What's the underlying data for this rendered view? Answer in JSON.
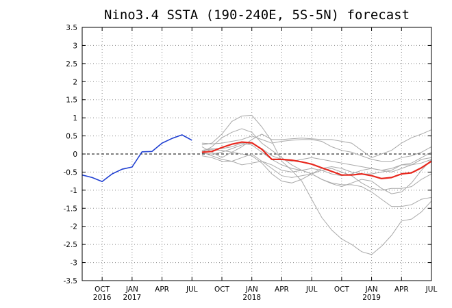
{
  "chart_data": {
    "type": "line",
    "title": "Nino3.4 SSTA (190-240E, 5S-5N) forecast",
    "xlabel": "",
    "ylabel": "",
    "ylim": [
      -3.5,
      3.5
    ],
    "xlim": [
      "2016-08",
      "2019-07"
    ],
    "grid": true,
    "y_ticks": [
      "3.5",
      "3",
      "2.5",
      "2",
      "1.5",
      "1",
      "0.5",
      "0",
      "-0.5",
      "-1",
      "-1.5",
      "-2",
      "-2.5",
      "-3",
      "-3.5"
    ],
    "x_ticks": [
      {
        "x": "2016-10",
        "month": "OCT",
        "year": "2016"
      },
      {
        "x": "2017-01",
        "month": "JAN",
        "year": "2017"
      },
      {
        "x": "2017-04",
        "month": "APR",
        "year": ""
      },
      {
        "x": "2017-07",
        "month": "JUL",
        "year": ""
      },
      {
        "x": "2017-10",
        "month": "OCT",
        "year": ""
      },
      {
        "x": "2018-01",
        "month": "JAN",
        "year": "2018"
      },
      {
        "x": "2018-04",
        "month": "APR",
        "year": ""
      },
      {
        "x": "2018-07",
        "month": "JUL",
        "year": ""
      },
      {
        "x": "2018-10",
        "month": "OCT",
        "year": ""
      },
      {
        "x": "2019-01",
        "month": "JAN",
        "year": "2019"
      },
      {
        "x": "2019-04",
        "month": "APR",
        "year": ""
      },
      {
        "x": "2019-07",
        "month": "JUL",
        "year": ""
      }
    ],
    "zero_line": {
      "y": 0,
      "style": "dashed",
      "color": "#000000"
    },
    "observed": {
      "color": "#1f3fd1",
      "x": [
        "2016-08",
        "2016-09",
        "2016-10",
        "2016-11",
        "2016-12",
        "2017-01",
        "2017-02",
        "2017-03",
        "2017-04",
        "2017-05",
        "2017-06",
        "2017-07"
      ],
      "y": [
        -0.58,
        -0.65,
        -0.76,
        -0.55,
        -0.42,
        -0.36,
        0.06,
        0.07,
        0.3,
        0.43,
        0.53,
        0.38
      ]
    },
    "ensemble_mean": {
      "color": "#e8281e",
      "x": [
        "2017-08",
        "2017-09",
        "2017-10",
        "2017-11",
        "2017-12",
        "2018-01",
        "2018-02",
        "2018-03",
        "2018-04",
        "2018-05",
        "2018-06",
        "2018-07",
        "2018-08",
        "2018-09",
        "2018-10",
        "2018-11",
        "2018-12",
        "2019-01",
        "2019-02",
        "2019-03",
        "2019-04",
        "2019-05",
        "2019-06",
        "2019-07"
      ],
      "y": [
        0.05,
        0.07,
        0.18,
        0.27,
        0.33,
        0.31,
        0.13,
        -0.15,
        -0.15,
        -0.17,
        -0.22,
        -0.28,
        -0.38,
        -0.48,
        -0.58,
        -0.58,
        -0.55,
        -0.6,
        -0.68,
        -0.65,
        -0.55,
        -0.52,
        -0.38,
        -0.2
      ]
    },
    "members_color": "#a9a9a9",
    "members": [
      {
        "x": [
          "2017-08",
          "2017-09",
          "2017-10",
          "2017-11",
          "2017-12",
          "2018-01",
          "2018-02",
          "2018-03",
          "2018-04",
          "2018-05",
          "2018-06",
          "2018-07",
          "2018-08",
          "2018-09",
          "2018-10",
          "2018-11",
          "2018-12",
          "2019-01",
          "2019-02",
          "2019-03",
          "2019-04",
          "2019-05",
          "2019-06",
          "2019-07"
        ],
        "y": [
          0.25,
          0.3,
          0.55,
          0.9,
          1.05,
          1.07,
          0.75,
          0.35,
          -0.2,
          -0.45,
          -0.75,
          -1.25,
          -1.75,
          -2.1,
          -2.35,
          -2.5,
          -2.7,
          -2.78,
          -2.55,
          -2.25,
          -1.85,
          -1.8,
          -1.6,
          -1.3
        ]
      },
      {
        "x": [
          "2017-08",
          "2017-09",
          "2017-10",
          "2017-11",
          "2017-12",
          "2018-01",
          "2018-02",
          "2018-03",
          "2018-04",
          "2018-05",
          "2018-06",
          "2018-07",
          "2018-08",
          "2018-09",
          "2018-10",
          "2018-11",
          "2018-12",
          "2019-01",
          "2019-02",
          "2019-03",
          "2019-04",
          "2019-05",
          "2019-06",
          "2019-07"
        ],
        "y": [
          0.05,
          0.2,
          0.45,
          0.6,
          0.7,
          0.6,
          0.3,
          0.1,
          -0.1,
          -0.3,
          -0.45,
          -0.55,
          -0.7,
          -0.8,
          -0.85,
          -0.85,
          -0.9,
          -1.05,
          -1.25,
          -1.45,
          -1.45,
          -1.4,
          -1.25,
          -1.2
        ]
      },
      {
        "x": [
          "2017-08",
          "2017-09",
          "2017-10",
          "2017-11",
          "2017-12",
          "2018-01",
          "2018-02",
          "2018-03",
          "2018-04",
          "2018-05",
          "2018-06",
          "2018-07",
          "2018-08",
          "2018-09",
          "2018-10",
          "2018-11",
          "2018-12",
          "2019-01",
          "2019-02",
          "2019-03",
          "2019-04",
          "2019-05",
          "2019-06",
          "2019-07"
        ],
        "y": [
          0.2,
          0.05,
          -0.1,
          0.05,
          0.2,
          0.4,
          0.55,
          0.4,
          0.4,
          0.42,
          0.44,
          0.42,
          0.4,
          0.4,
          0.35,
          0.3,
          0.1,
          -0.1,
          0.0,
          0.1,
          0.3,
          0.45,
          0.55,
          0.67
        ]
      },
      {
        "x": [
          "2017-08",
          "2017-09",
          "2017-10",
          "2017-11",
          "2017-12",
          "2018-01",
          "2018-02",
          "2018-03",
          "2018-04",
          "2018-05",
          "2018-06",
          "2018-07",
          "2018-08",
          "2018-09",
          "2018-10",
          "2018-11",
          "2018-12",
          "2019-01",
          "2019-02",
          "2019-03",
          "2019-04",
          "2019-05",
          "2019-06",
          "2019-07"
        ],
        "y": [
          0.3,
          0.28,
          0.3,
          0.35,
          0.4,
          0.5,
          0.4,
          0.3,
          0.35,
          0.38,
          0.4,
          0.4,
          0.35,
          0.2,
          0.1,
          0.05,
          -0.05,
          -0.15,
          -0.2,
          -0.2,
          -0.1,
          -0.05,
          0.05,
          0.2
        ]
      },
      {
        "x": [
          "2017-08",
          "2017-09",
          "2017-10",
          "2017-11",
          "2017-12",
          "2018-01",
          "2018-02",
          "2018-03",
          "2018-04",
          "2018-05",
          "2018-06",
          "2018-07",
          "2018-08",
          "2018-09",
          "2018-10",
          "2018-11",
          "2018-12",
          "2019-01",
          "2019-02",
          "2019-03",
          "2019-04",
          "2019-05",
          "2019-06",
          "2019-07"
        ],
        "y": [
          -0.05,
          -0.1,
          -0.2,
          -0.2,
          -0.1,
          0.0,
          -0.2,
          -0.4,
          -0.6,
          -0.65,
          -0.6,
          -0.55,
          -0.45,
          -0.4,
          -0.5,
          -0.6,
          -0.8,
          -0.95,
          -1.0,
          -0.95,
          -0.95,
          -0.9,
          -0.7,
          -0.55
        ]
      },
      {
        "x": [
          "2017-08",
          "2017-09",
          "2017-10",
          "2017-11",
          "2017-12",
          "2018-01",
          "2018-02",
          "2018-03",
          "2018-04",
          "2018-05",
          "2018-06",
          "2018-07",
          "2018-08",
          "2018-09",
          "2018-10",
          "2018-11",
          "2018-12",
          "2019-01",
          "2019-02",
          "2019-03",
          "2019-04",
          "2019-05",
          "2019-06",
          "2019-07"
        ],
        "y": [
          0.1,
          0.15,
          0.15,
          0.2,
          0.3,
          0.25,
          0.05,
          -0.15,
          -0.3,
          -0.4,
          -0.45,
          -0.55,
          -0.7,
          -0.82,
          -0.9,
          -0.8,
          -0.7,
          -0.75,
          -0.95,
          -1.1,
          -1.05,
          -0.8,
          -0.45,
          -0.15
        ]
      },
      {
        "x": [
          "2017-08",
          "2017-09",
          "2017-10",
          "2017-11",
          "2017-12",
          "2018-01",
          "2018-02",
          "2018-03",
          "2018-04",
          "2018-05",
          "2018-06",
          "2018-07",
          "2018-08",
          "2018-09",
          "2018-10",
          "2018-11",
          "2018-12",
          "2019-01",
          "2019-02",
          "2019-03",
          "2019-04",
          "2019-05",
          "2019-06",
          "2019-07"
        ],
        "y": [
          0.1,
          0.12,
          0.1,
          0.05,
          0.0,
          -0.05,
          -0.25,
          -0.55,
          -0.75,
          -0.8,
          -0.7,
          -0.55,
          -0.4,
          -0.35,
          -0.4,
          -0.5,
          -0.55,
          -0.55,
          -0.5,
          -0.45,
          -0.3,
          -0.25,
          -0.1,
          0.05
        ]
      },
      {
        "x": [
          "2017-08",
          "2017-09",
          "2017-10",
          "2017-11",
          "2017-12",
          "2018-01",
          "2018-02",
          "2018-03",
          "2018-04",
          "2018-05",
          "2018-06",
          "2018-07",
          "2018-08",
          "2018-09",
          "2018-10",
          "2018-11",
          "2018-12",
          "2019-01",
          "2019-02",
          "2019-03",
          "2019-04",
          "2019-05",
          "2019-06",
          "2019-07"
        ],
        "y": [
          0.02,
          0.0,
          0.05,
          0.15,
          0.25,
          0.3,
          0.15,
          -0.05,
          -0.15,
          -0.2,
          -0.15,
          -0.1,
          -0.15,
          -0.2,
          -0.25,
          -0.3,
          -0.35,
          -0.4,
          -0.45,
          -0.4,
          -0.3,
          -0.3,
          -0.25,
          -0.15
        ]
      },
      {
        "x": [
          "2017-08",
          "2017-09",
          "2017-10",
          "2017-11",
          "2017-12",
          "2018-01",
          "2018-02",
          "2018-03",
          "2018-04",
          "2018-05",
          "2018-06",
          "2018-07",
          "2018-08",
          "2018-09",
          "2018-10",
          "2018-11",
          "2018-12",
          "2019-01",
          "2019-02",
          "2019-03",
          "2019-04",
          "2019-05",
          "2019-06",
          "2019-07"
        ],
        "y": [
          0.05,
          -0.05,
          -0.15,
          -0.2,
          -0.3,
          -0.25,
          -0.2,
          -0.3,
          -0.45,
          -0.5,
          -0.45,
          -0.4,
          -0.45,
          -0.55,
          -0.6,
          -0.55,
          -0.45,
          -0.4,
          -0.45,
          -0.5,
          -0.4,
          -0.3,
          -0.15,
          -0.1
        ]
      }
    ]
  }
}
